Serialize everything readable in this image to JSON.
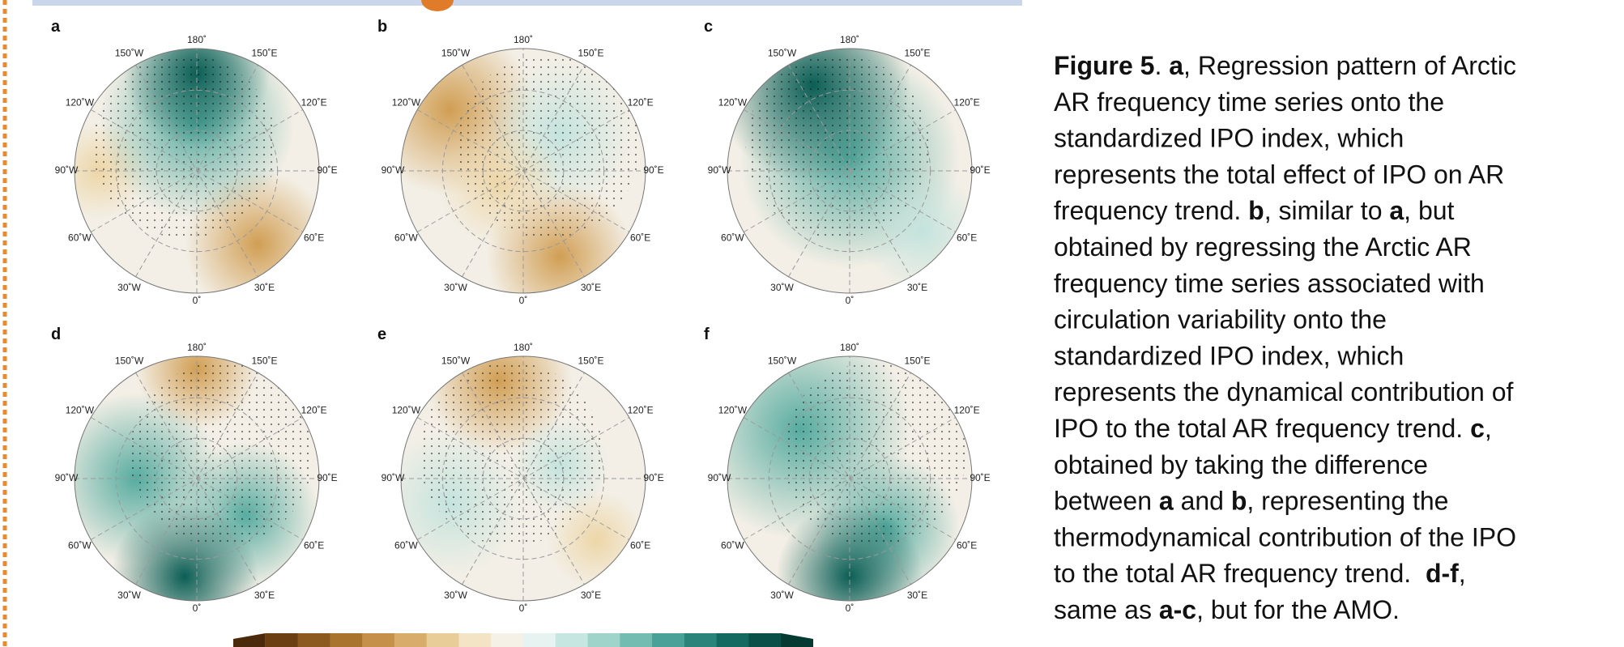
{
  "panels": [
    {
      "label": "a"
    },
    {
      "label": "b"
    },
    {
      "label": "c"
    },
    {
      "label": "d"
    },
    {
      "label": "e"
    },
    {
      "label": "f"
    }
  ],
  "lon_labels": [
    "180˚",
    "150˚E",
    "120˚E",
    "90˚E",
    "60˚E",
    "30˚E",
    "0˚",
    "30˚W",
    "60˚W",
    "90˚W",
    "120˚W",
    "150˚W"
  ],
  "caption": {
    "lines": [
      [
        {
          "text": "Figure 5",
          "bold": true
        },
        {
          "text": ". "
        },
        {
          "text": "a",
          "bold": true
        },
        {
          "text": ", Regression pattern of Arctic"
        }
      ],
      [
        {
          "text": "AR frequency time series onto the"
        }
      ],
      [
        {
          "text": "standardized IPO index, which"
        }
      ],
      [
        {
          "text": "represents the total effect of IPO on AR"
        }
      ],
      [
        {
          "text": "frequency trend. "
        },
        {
          "text": "b",
          "bold": true
        },
        {
          "text": ", similar to "
        },
        {
          "text": "a",
          "bold": true
        },
        {
          "text": ", but"
        }
      ],
      [
        {
          "text": "obtained by regressing the Arctic AR"
        }
      ],
      [
        {
          "text": "frequency time series associated with"
        }
      ],
      [
        {
          "text": "circulation variability onto the"
        }
      ],
      [
        {
          "text": "standardized IPO index, which"
        }
      ],
      [
        {
          "text": "represents the dynamical contribution of"
        }
      ],
      [
        {
          "text": "IPO to the total AR frequency trend. "
        },
        {
          "text": "c",
          "bold": true
        },
        {
          "text": ","
        }
      ],
      [
        {
          "text": "obtained by taking the difference"
        }
      ],
      [
        {
          "text": "between "
        },
        {
          "text": "a",
          "bold": true
        },
        {
          "text": " and "
        },
        {
          "text": "b",
          "bold": true
        },
        {
          "text": ", representing the"
        }
      ],
      [
        {
          "text": "thermodynamical contribution of the IPO"
        }
      ],
      [
        {
          "text": "to the total AR frequency trend.  "
        },
        {
          "text": "d-f",
          "bold": true
        },
        {
          "text": ","
        }
      ],
      [
        {
          "text": "same as "
        },
        {
          "text": "a-c",
          "bold": true
        },
        {
          "text": ", but for the AMO."
        }
      ]
    ]
  }
}
